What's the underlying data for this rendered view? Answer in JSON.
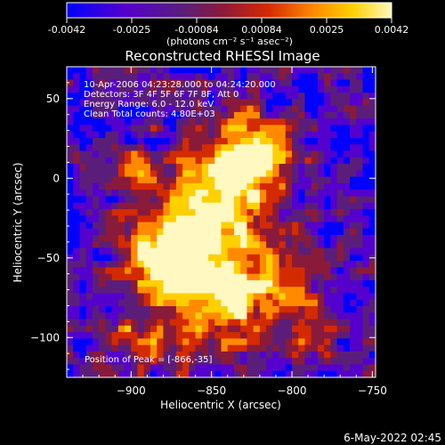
{
  "colorbar": {
    "ticks": [
      "-0.0042",
      "-0.0025",
      "-0.00084",
      "0.00084",
      "0.0025",
      "0.0042"
    ],
    "unit_label": "(photons cm⁻² s⁻¹ asec⁻²)",
    "colors": [
      "#0000ff",
      "#5500cc",
      "#5a1e7a",
      "#8a1a3a",
      "#d42a00",
      "#ff8a00",
      "#ffd000",
      "#fff8c0"
    ]
  },
  "chart_data": {
    "type": "heatmap",
    "title": "Reconstructed RHESSI Image",
    "xlabel": "Heliocentric X (arcsec)",
    "ylabel": "Heliocentric Y (arcsec)",
    "xlim": [
      -940,
      -748
    ],
    "ylim": [
      -125,
      70
    ],
    "xticks": [
      -900,
      -850,
      -800,
      -750
    ],
    "yticks": [
      50,
      0,
      -50,
      -100
    ],
    "annotations": [
      "10-Apr-2006 04:23:28.000 to 04:24:20.000",
      "Detectors: 3F 4F 5F 6F 7F 8F, Att 0",
      "Energy Range: 6.0 - 12.0 keV",
      "Clean     Total counts: 4.80E+03"
    ],
    "peak_label": "Position of Peak = [-866,-35]",
    "peak": [
      -866,
      -35
    ]
  },
  "footer": {
    "timestamp": "6-May-2022 02:45"
  }
}
